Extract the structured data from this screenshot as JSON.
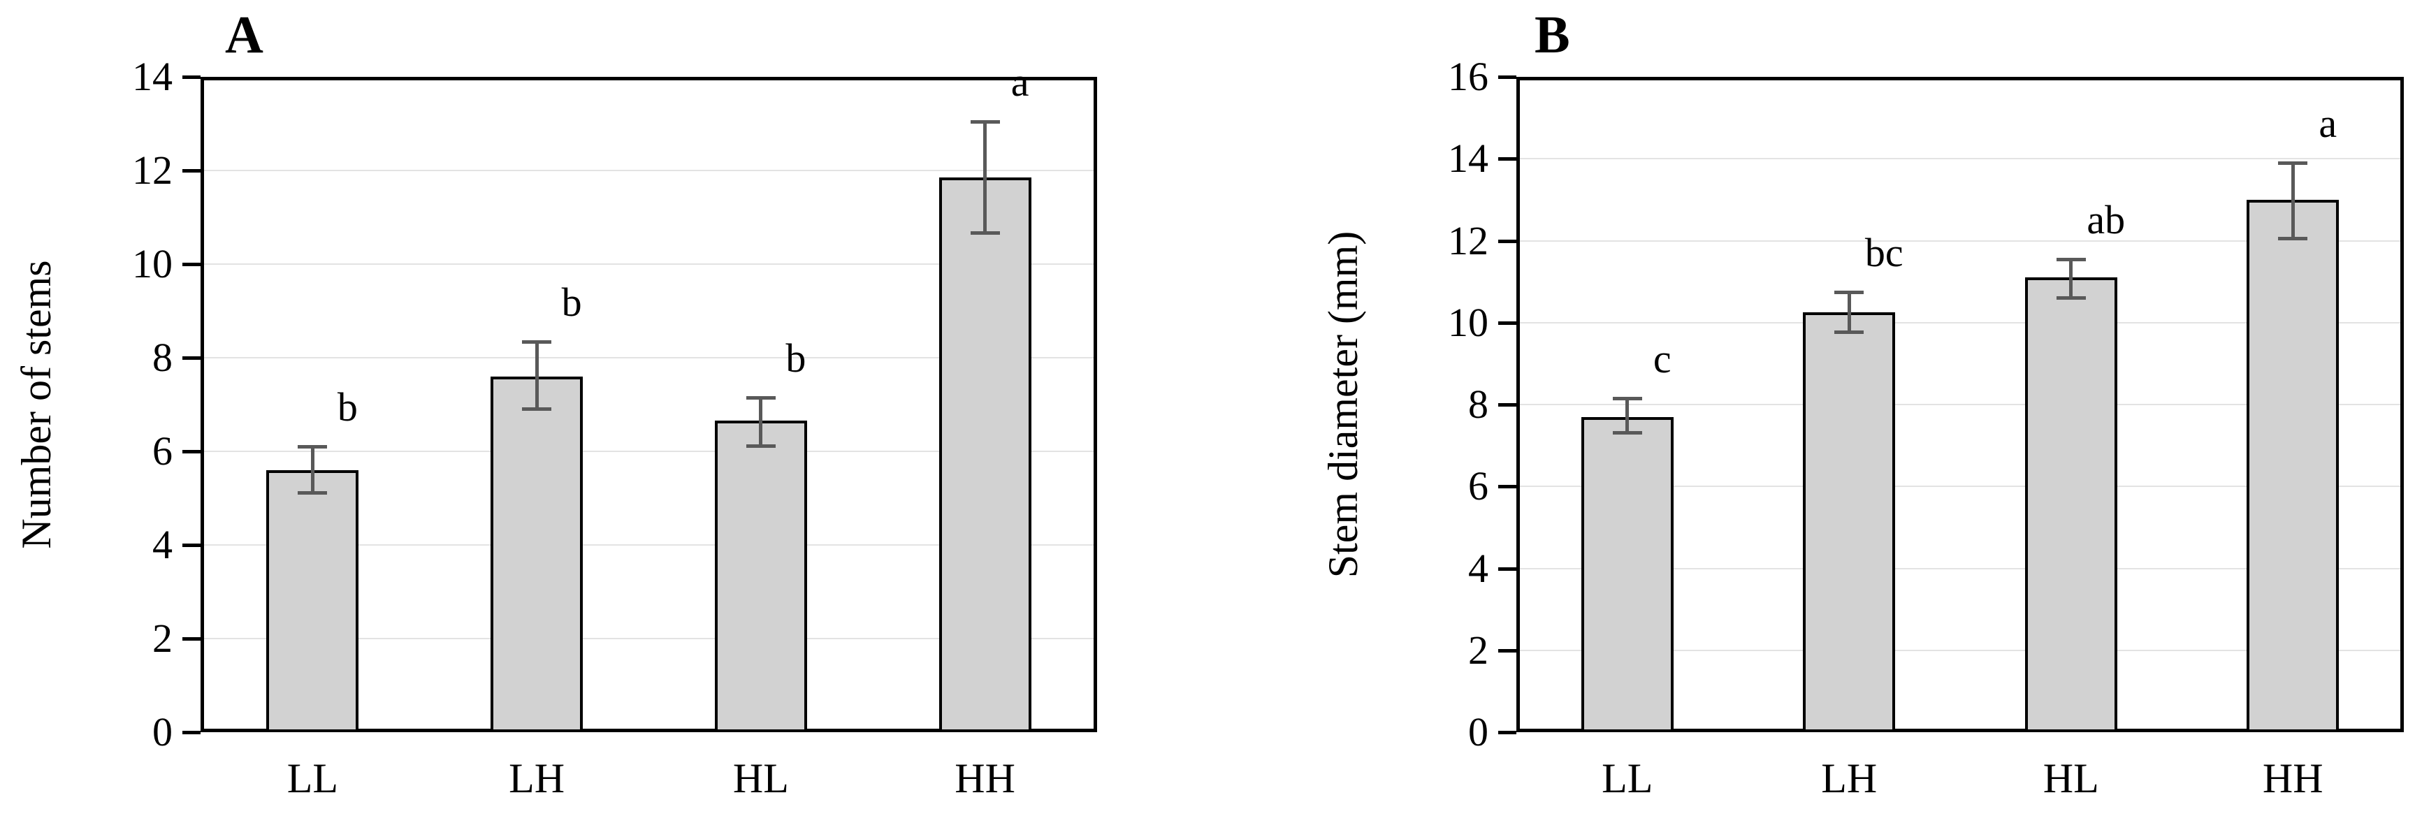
{
  "figure_title": "",
  "colors": {
    "bar_fill": "#d2d2d2",
    "bar_border": "#000000",
    "error_bar": "#595959",
    "gridline": "#e3e3e3",
    "axis": "#000000",
    "text": "#000000",
    "background": "#ffffff"
  },
  "chart_data": [
    {
      "type": "bar",
      "panel_label": "A",
      "title": "",
      "xlabel": "",
      "ylabel": "Number of stems",
      "categories": [
        "LL",
        "LH",
        "HL",
        "HH"
      ],
      "values": [
        5.6,
        7.6,
        6.65,
        11.85
      ],
      "error_up": [
        0.5,
        0.75,
        0.5,
        1.2
      ],
      "error_down": [
        0.5,
        0.7,
        0.55,
        1.2
      ],
      "sig_letters": [
        "b",
        "b",
        "b",
        "a"
      ],
      "ylim": [
        0,
        14
      ],
      "y_tick_step": 2,
      "y_tick_labels": [
        "0",
        "2",
        "4",
        "6",
        "8",
        "10",
        "12",
        "14"
      ],
      "grid": true,
      "legend": false
    },
    {
      "type": "bar",
      "panel_label": "B",
      "title": "",
      "xlabel": "",
      "ylabel": "Stem diameter (mm)",
      "categories": [
        "LL",
        "LH",
        "HL",
        "HH"
      ],
      "values": [
        7.7,
        10.25,
        11.1,
        13.0
      ],
      "error_up": [
        0.45,
        0.5,
        0.45,
        0.9
      ],
      "error_down": [
        0.4,
        0.5,
        0.5,
        0.95
      ],
      "sig_letters": [
        "c",
        "bc",
        "ab",
        "a"
      ],
      "ylim": [
        0,
        16
      ],
      "y_tick_step": 2,
      "y_tick_labels": [
        "0",
        "2",
        "4",
        "6",
        "8",
        "10",
        "12",
        "14",
        "16"
      ],
      "grid": true,
      "legend": false
    }
  ]
}
